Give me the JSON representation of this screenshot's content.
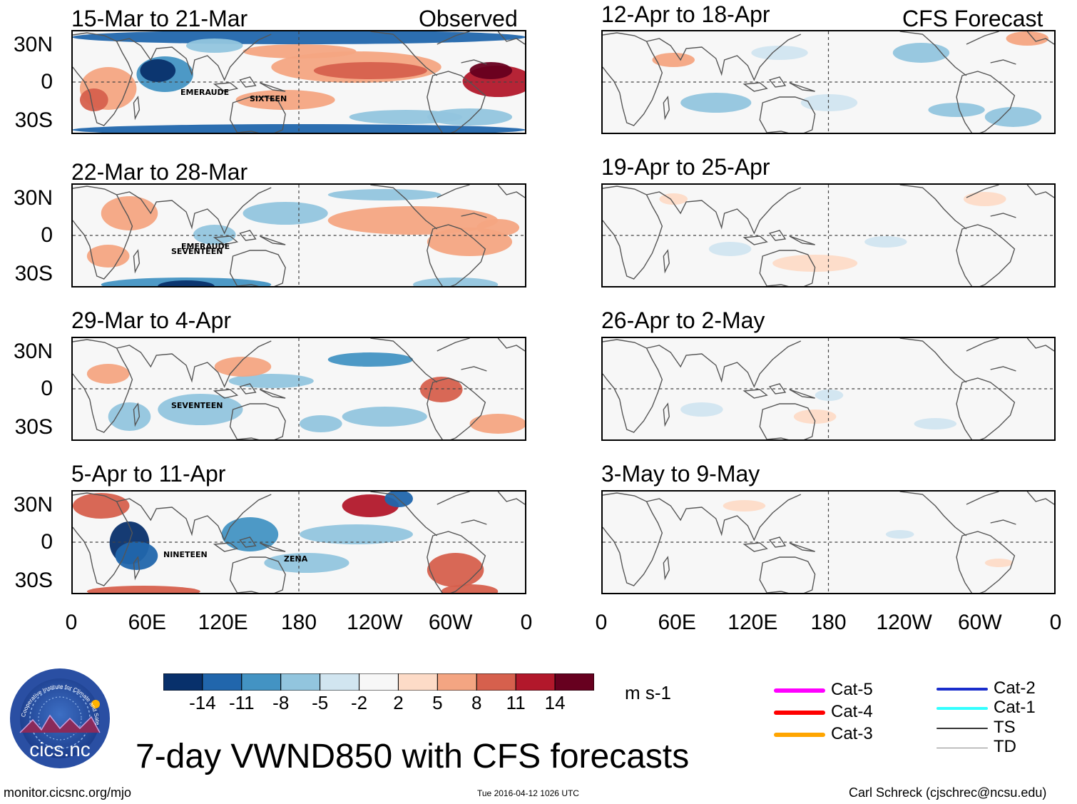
{
  "observed_label": "Observed",
  "forecast_label": "CFS Forecast",
  "left_panels": [
    {
      "title": "15-Mar to 21-Mar",
      "storms": [
        "EMERAUDE",
        "SIXTEEN"
      ]
    },
    {
      "title": "22-Mar to 28-Mar",
      "storms": [
        "SEVENTEEN",
        "EMERAUDE"
      ]
    },
    {
      "title": "29-Mar to 4-Apr",
      "storms": [
        "SEVENTEEN"
      ]
    },
    {
      "title": "5-Apr to 11-Apr",
      "storms": [
        "NINETEEN",
        "ZENA"
      ]
    }
  ],
  "right_panels": [
    {
      "title": "12-Apr to 18-Apr"
    },
    {
      "title": "19-Apr to 25-Apr"
    },
    {
      "title": "26-Apr to 2-May"
    },
    {
      "title": "3-May to 9-May"
    }
  ],
  "y_ticks": [
    "30N",
    "0",
    "30S"
  ],
  "x_ticks": [
    "0",
    "60E",
    "120E",
    "180",
    "120W",
    "60W",
    "0"
  ],
  "colorbar": {
    "colors": [
      "#08306b",
      "#2166ac",
      "#4393c3",
      "#92c5de",
      "#d1e5f0",
      "#f7f7f7",
      "#fddbc7",
      "#f4a582",
      "#d6604d",
      "#b2182b",
      "#67001f"
    ],
    "labels": [
      "-14",
      "-11",
      "-8",
      "-5",
      "-2",
      "2",
      "5",
      "8",
      "11",
      "14"
    ],
    "units": "m s-1"
  },
  "track_legend": [
    {
      "label": "Cat-5",
      "color": "#ff00ff"
    },
    {
      "label": "Cat-4",
      "color": "#ff0000"
    },
    {
      "label": "Cat-3",
      "color": "#ffa500"
    },
    {
      "label": "Cat-2",
      "color": "#1a2ecc"
    },
    {
      "label": "Cat-1",
      "color": "#33ffff"
    },
    {
      "label": "TS",
      "color": "#333333"
    },
    {
      "label": "TD",
      "color": "#888888"
    }
  ],
  "logo_text": "cics.nc",
  "logo_ring_text": "Cooperative Institute for Climate and Satellites",
  "main_title": "7-day VWND850 with CFS forecasts",
  "footer_left": "monitor.cicsnc.org/mjo",
  "footer_center": "Tue 2016-04-12 1026 UTC",
  "footer_right": "Carl Schreck (cjschrec@ncsu.edu)"
}
